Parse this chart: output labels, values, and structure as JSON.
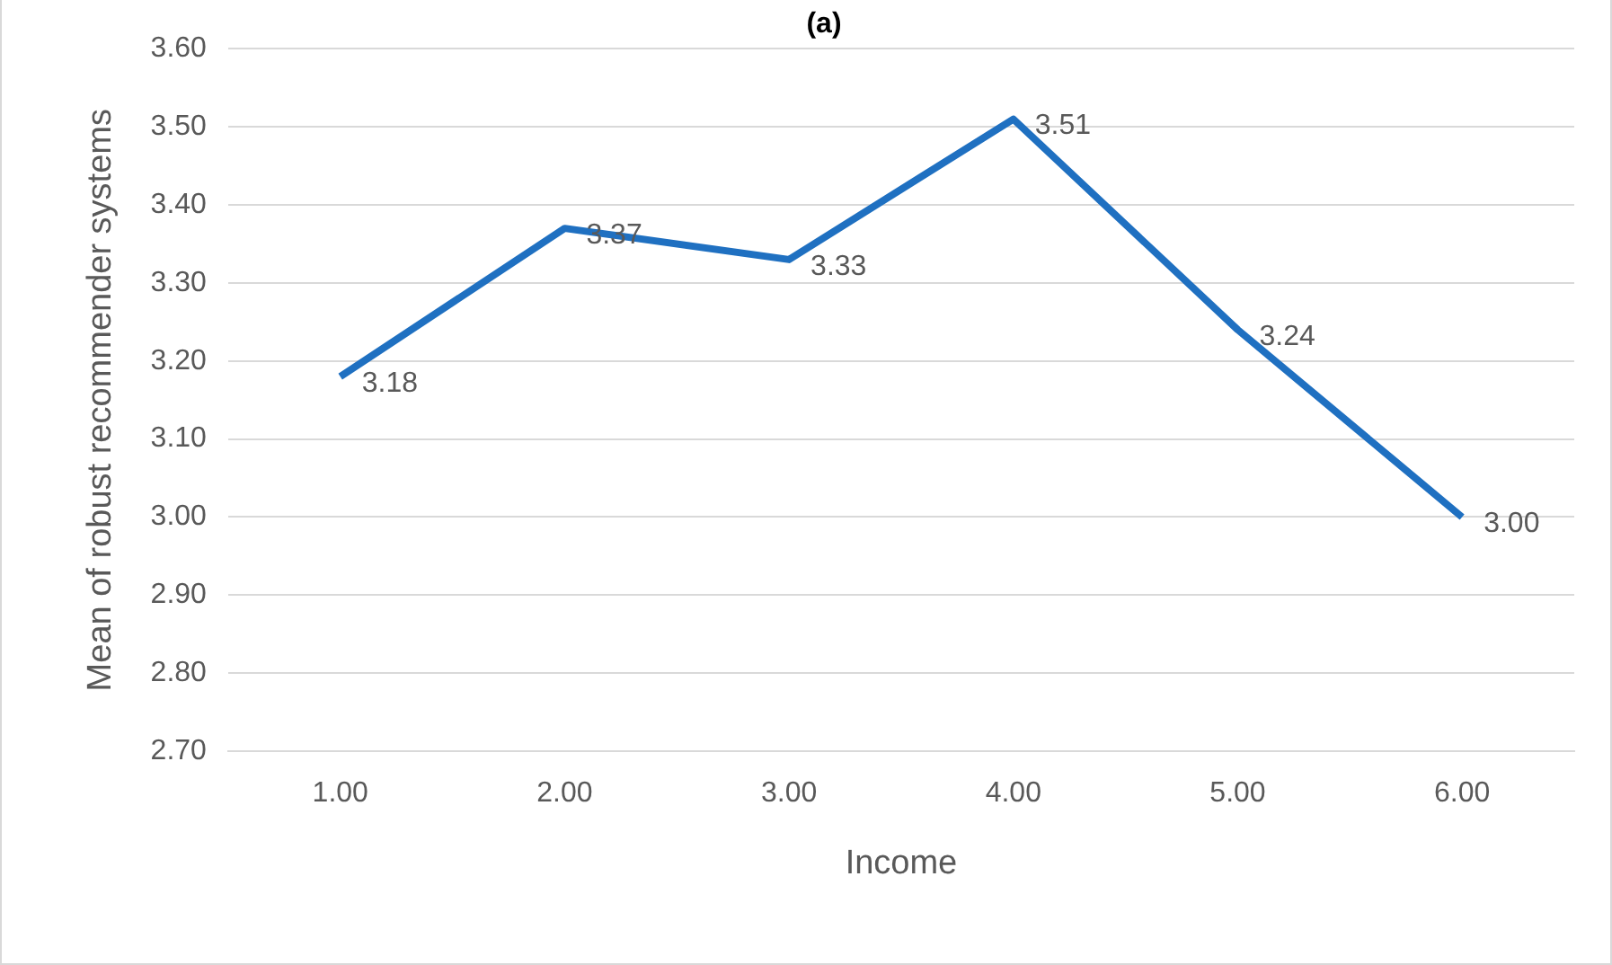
{
  "chart_data": {
    "type": "line",
    "title": "(a)",
    "xlabel": "Income",
    "ylabel": "Mean of robust recommender systems",
    "categories": [
      "1.00",
      "2.00",
      "3.00",
      "4.00",
      "5.00",
      "6.00"
    ],
    "series": [
      {
        "color": "#1f70c1",
        "values": [
          3.18,
          3.37,
          3.33,
          3.51,
          3.24,
          3.0
        ],
        "value_labels": [
          "3.18",
          "3.37",
          "3.33",
          "3.51",
          "3.24",
          "3.00"
        ]
      }
    ],
    "ylim": [
      2.7,
      3.6
    ],
    "yticks": [
      {
        "value": 2.7,
        "label": "2.70"
      },
      {
        "value": 2.8,
        "label": "2.80"
      },
      {
        "value": 2.9,
        "label": "2.90"
      },
      {
        "value": 3.0,
        "label": "3.00"
      },
      {
        "value": 3.1,
        "label": "3.10"
      },
      {
        "value": 3.2,
        "label": "3.20"
      },
      {
        "value": 3.3,
        "label": "3.30"
      },
      {
        "value": 3.4,
        "label": "3.40"
      },
      {
        "value": 3.5,
        "label": "3.50"
      },
      {
        "value": 3.6,
        "label": "3.60"
      }
    ],
    "grid": "y",
    "marker": "none",
    "line_style": "solid",
    "legend": false
  }
}
